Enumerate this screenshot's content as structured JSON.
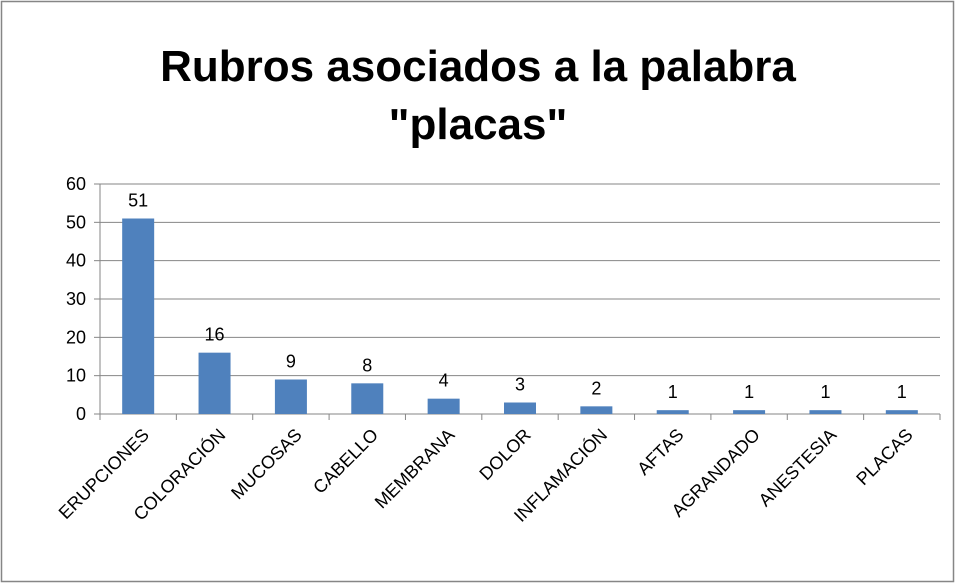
{
  "chart_data": {
    "type": "bar",
    "title": "Rubros asociados a la palabra \"placas\"",
    "categories": [
      "ERUPCIONES",
      "COLORACIÓN",
      "MUCOSAS",
      "CABELLO",
      "MEMBRANA",
      "DOLOR",
      "INFLAMACIÓN",
      "AFTAS",
      "AGRANDADO",
      "ANESTESIA",
      "PLACAS"
    ],
    "values": [
      51,
      16,
      9,
      8,
      4,
      3,
      2,
      1,
      1,
      1,
      1
    ],
    "color": "#4f81bd",
    "ylim": [
      0,
      60
    ],
    "yticks": [
      0,
      10,
      20,
      30,
      40,
      50,
      60
    ],
    "grid": true
  }
}
